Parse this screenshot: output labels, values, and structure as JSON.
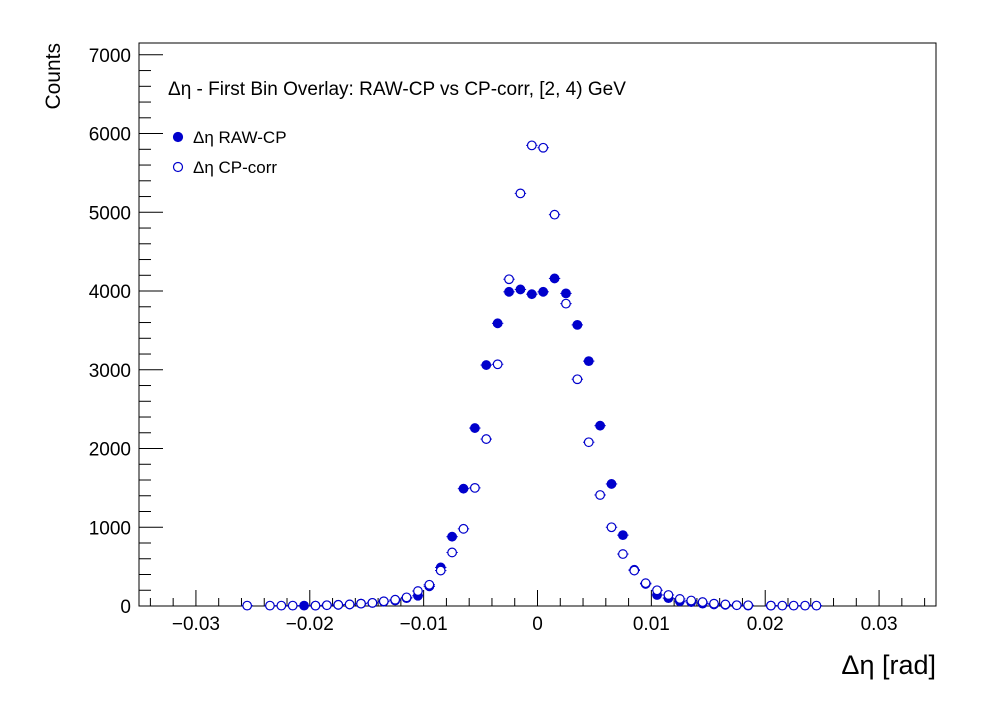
{
  "chart_data": {
    "type": "scatter",
    "title": "Δη  -  First Bin Overlay: RAW-CP vs CP-corr, [2, 4) GeV",
    "xlabel": "Δη  [rad]",
    "ylabel": "Counts",
    "xlim": [
      -0.035,
      0.035
    ],
    "ylim": [
      0,
      7150
    ],
    "x_ticks": [
      -0.03,
      -0.02,
      -0.01,
      0,
      0.01,
      0.02,
      0.03
    ],
    "x_tick_labels": [
      "−0.03",
      "−0.02",
      "−0.01",
      "0",
      "0.01",
      "0.02",
      "0.03"
    ],
    "y_ticks": [
      0,
      1000,
      2000,
      3000,
      4000,
      5000,
      6000,
      7000
    ],
    "y_tick_labels": [
      "0",
      "1000",
      "2000",
      "3000",
      "4000",
      "5000",
      "6000",
      "7000"
    ],
    "grid": false,
    "legend_position": "top-left",
    "color": "#0000cc",
    "series": [
      {
        "name": "Δη RAW-CP",
        "marker": "filled-circle",
        "x": [
          -0.0205,
          -0.0195,
          -0.0185,
          -0.0175,
          -0.0165,
          -0.0155,
          -0.0145,
          -0.0135,
          -0.0125,
          -0.0115,
          -0.0105,
          -0.0095,
          -0.0085,
          -0.0075,
          -0.0065,
          -0.0055,
          -0.0045,
          -0.0035,
          -0.0025,
          -0.0015,
          -0.0005,
          0.0005,
          0.0015,
          0.0025,
          0.0035,
          0.0045,
          0.0055,
          0.0065,
          0.0075,
          0.0085,
          0.0095,
          0.0105,
          0.0115,
          0.0125,
          0.0135,
          0.0145,
          0.0155,
          0.0165,
          0.0175,
          0.0185,
          0.0205
        ],
        "y": [
          5,
          5,
          10,
          15,
          20,
          30,
          40,
          55,
          70,
          100,
          130,
          250,
          490,
          880,
          1490,
          2260,
          3060,
          3590,
          3990,
          4020,
          3960,
          3990,
          4160,
          3970,
          3570,
          3110,
          2290,
          1550,
          900,
          460,
          280,
          140,
          100,
          60,
          50,
          30,
          20,
          15,
          10,
          5,
          5
        ]
      },
      {
        "name": "Δη CP-corr",
        "marker": "open-circle",
        "x": [
          -0.0255,
          -0.0235,
          -0.0225,
          -0.0215,
          -0.0195,
          -0.0185,
          -0.0175,
          -0.0165,
          -0.0155,
          -0.0145,
          -0.0135,
          -0.0125,
          -0.0115,
          -0.0105,
          -0.0095,
          -0.0085,
          -0.0075,
          -0.0065,
          -0.0055,
          -0.0045,
          -0.0035,
          -0.0025,
          -0.0015,
          -0.0005,
          0.0005,
          0.0015,
          0.0025,
          0.0035,
          0.0045,
          0.0055,
          0.0065,
          0.0075,
          0.0085,
          0.0095,
          0.0105,
          0.0115,
          0.0125,
          0.0135,
          0.0145,
          0.0155,
          0.0165,
          0.0175,
          0.0185,
          0.0205,
          0.0215,
          0.0225,
          0.0235,
          0.0245
        ],
        "y": [
          5,
          5,
          5,
          5,
          5,
          10,
          15,
          20,
          30,
          40,
          60,
          80,
          110,
          190,
          270,
          450,
          680,
          980,
          1500,
          2120,
          3070,
          4150,
          5240,
          5850,
          5820,
          4970,
          3840,
          2880,
          2080,
          1410,
          1000,
          660,
          450,
          290,
          200,
          140,
          90,
          70,
          50,
          30,
          20,
          10,
          10,
          5,
          5,
          5,
          5,
          5
        ]
      }
    ]
  }
}
